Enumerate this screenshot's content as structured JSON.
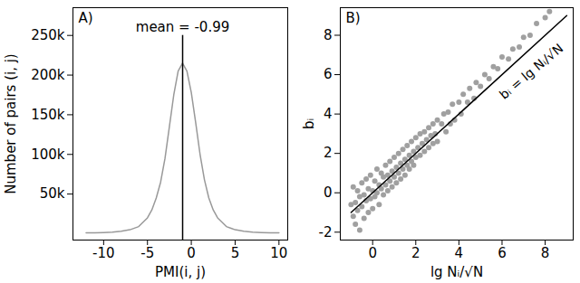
{
  "chart_data": [
    {
      "type": "line",
      "panel_label": "A)",
      "x_label": "PMI(i, j)",
      "y_label": "Number of pairs (i, j)",
      "x": [
        -12,
        -11,
        -10,
        -9,
        -8,
        -7,
        -6,
        -5,
        -4.5,
        -4,
        -3.5,
        -3,
        -2.5,
        -2,
        -1.5,
        -1,
        -0.5,
        0,
        0.5,
        1,
        1.5,
        2,
        2.5,
        3,
        4,
        5,
        6,
        7,
        8,
        9,
        10
      ],
      "values": [
        1000,
        1000,
        1500,
        2000,
        3000,
        5000,
        9000,
        20000,
        30000,
        45000,
        65000,
        95000,
        135000,
        175000,
        205000,
        215000,
        205000,
        178000,
        140000,
        100000,
        68000,
        45000,
        30000,
        20000,
        9000,
        5000,
        3000,
        2000,
        1500,
        1000,
        1000
      ],
      "color": "#999999",
      "mean_line": {
        "x": -0.99,
        "y_top": 250000,
        "label": "mean = -0.99",
        "color": "#000000"
      },
      "xlim": [
        -13.5,
        11
      ],
      "ylim": [
        -8000,
        285000
      ],
      "xticks": [
        -10,
        -5,
        0,
        5,
        10
      ],
      "yticks": [
        {
          "value": 50000,
          "label": "50k"
        },
        {
          "value": 100000,
          "label": "100k"
        },
        {
          "value": 150000,
          "label": "150k"
        },
        {
          "value": 200000,
          "label": "200k"
        },
        {
          "value": 250000,
          "label": "250k"
        }
      ],
      "grid": false
    },
    {
      "type": "scatter",
      "panel_label": "B)",
      "x_label": "lg Nᵢ/√N",
      "y_label": "bᵢ",
      "x": [
        -1.0,
        -0.9,
        -0.9,
        -0.8,
        -0.8,
        -0.7,
        -0.7,
        -0.6,
        -0.6,
        -0.5,
        -0.5,
        -0.4,
        -0.4,
        -0.3,
        -0.3,
        -0.2,
        -0.2,
        -0.1,
        -0.1,
        0.0,
        0.0,
        0.1,
        0.1,
        0.2,
        0.2,
        0.3,
        0.3,
        0.4,
        0.4,
        0.5,
        0.5,
        0.6,
        0.6,
        0.7,
        0.7,
        0.8,
        0.8,
        0.9,
        0.9,
        1.0,
        1.0,
        1.1,
        1.1,
        1.2,
        1.2,
        1.3,
        1.3,
        1.4,
        1.4,
        1.5,
        1.5,
        1.6,
        1.6,
        1.7,
        1.7,
        1.8,
        1.8,
        1.9,
        1.9,
        2.0,
        2.0,
        2.1,
        2.2,
        2.2,
        2.3,
        2.4,
        2.4,
        2.5,
        2.6,
        2.6,
        2.7,
        2.8,
        2.8,
        2.9,
        3.0,
        3.0,
        3.2,
        3.3,
        3.4,
        3.5,
        3.6,
        3.7,
        3.8,
        4.0,
        4.1,
        4.2,
        4.4,
        4.5,
        4.7,
        4.8,
        5.0,
        5.2,
        5.4,
        5.6,
        5.8,
        6.0,
        6.3,
        6.5,
        6.8,
        7.0,
        7.3,
        7.6,
        8.0,
        8.2
      ],
      "y": [
        -0.6,
        -1.2,
        0.3,
        -0.5,
        -1.6,
        0.1,
        -0.9,
        -0.2,
        -1.9,
        0.5,
        -0.7,
        -0.1,
        -1.3,
        0.7,
        -0.4,
        0.2,
        -1.0,
        0.9,
        -0.3,
        0.1,
        -0.8,
        0.6,
        -0.2,
        1.2,
        0.0,
        0.4,
        -0.6,
        1.0,
        0.2,
        0.8,
        -0.1,
        1.4,
        0.4,
        0.9,
        0.1,
        1.6,
        0.6,
        1.1,
        0.3,
        1.8,
        0.8,
        1.3,
        0.5,
        2.0,
        1.0,
        1.5,
        0.7,
        2.2,
        1.2,
        1.7,
        0.9,
        2.4,
        1.4,
        1.9,
        1.2,
        2.6,
        1.6,
        2.1,
        1.4,
        2.8,
        1.8,
        2.3,
        3.0,
        1.9,
        2.5,
        3.1,
        2.1,
        2.7,
        3.3,
        2.3,
        2.9,
        3.5,
        2.5,
        3.0,
        3.7,
        2.6,
        3.5,
        4.0,
        3.1,
        4.1,
        3.5,
        4.5,
        3.7,
        4.6,
        4.0,
        5.0,
        4.6,
        5.3,
        4.8,
        5.6,
        5.4,
        6.0,
        5.8,
        6.4,
        6.3,
        6.9,
        6.8,
        7.3,
        7.4,
        7.9,
        8.0,
        8.6,
        8.9,
        9.2
      ],
      "color": "#a0a0a0",
      "marker": "circle",
      "fit_line": {
        "label": "bᵢ = lg Nᵢ/√N",
        "x": [
          -1,
          9
        ],
        "y": [
          -1,
          9
        ],
        "color": "#000000"
      },
      "xlim": [
        -1.5,
        9.3
      ],
      "ylim": [
        -2.4,
        9.4
      ],
      "xticks": [
        0,
        2,
        4,
        6,
        8
      ],
      "yticks": [
        -2,
        0,
        2,
        4,
        6,
        8
      ],
      "grid": false
    }
  ]
}
